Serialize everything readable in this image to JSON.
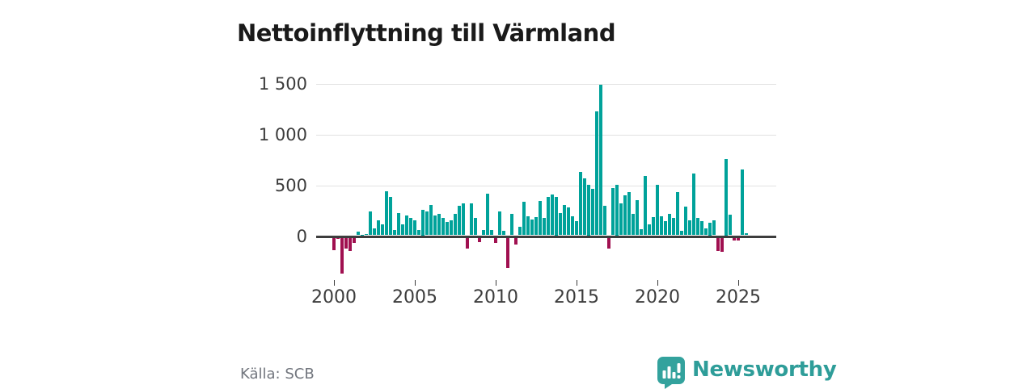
{
  "title": "Nettoinflyttning till Värmland",
  "source": "Källa: SCB",
  "brand": {
    "name": "Newsworthy",
    "wordmark_color": "#2e9d99",
    "badge_color": "#33a29d",
    "logo_icon": "bar-chart-speech-bubble-icon"
  },
  "colors": {
    "positive_bar": "#00a29a",
    "negative_bar": "#a01050",
    "axis_line": "#3d3d3d",
    "gridline": "#e2e2e2",
    "tick_text": "#3c3c3c",
    "muted_text": "#71757d",
    "background": "#ffffff"
  },
  "chart_data": {
    "type": "bar",
    "title": "Nettoinflyttning till Värmland",
    "xlabel": "",
    "ylabel": "",
    "frequency": "quarterly",
    "x_start": "2000 Q1",
    "x_end": "2025 Q3",
    "values": [
      -120,
      -10,
      -350,
      -110,
      -130,
      -55,
      35,
      5,
      10,
      235,
      65,
      145,
      105,
      430,
      380,
      55,
      220,
      110,
      195,
      170,
      150,
      50,
      250,
      235,
      300,
      195,
      210,
      170,
      130,
      145,
      210,
      290,
      310,
      -110,
      315,
      170,
      -40,
      55,
      410,
      50,
      -50,
      235,
      40,
      -295,
      210,
      -70,
      80,
      330,
      185,
      155,
      175,
      340,
      170,
      380,
      400,
      375,
      215,
      300,
      275,
      190,
      135,
      620,
      560,
      500,
      460,
      1215,
      1480,
      290,
      -105,
      465,
      500,
      315,
      395,
      425,
      210,
      345,
      60,
      585,
      110,
      180,
      495,
      190,
      135,
      210,
      170,
      425,
      45,
      280,
      150,
      610,
      170,
      135,
      65,
      125,
      145,
      -130,
      -140,
      750,
      205,
      -25,
      -30,
      650,
      20
    ],
    "yticks": [
      0,
      500,
      1000,
      1500
    ],
    "ytick_labels": [
      "0",
      "500",
      "1 000",
      "1 500"
    ],
    "xticks": [
      2000,
      2005,
      2010,
      2015,
      2020,
      2025
    ],
    "xtick_labels": [
      "2000",
      "2005",
      "2010",
      "2015",
      "2020",
      "2025"
    ],
    "ylim": [
      -400,
      1600
    ],
    "grid": "horizontal",
    "legend": "none"
  }
}
